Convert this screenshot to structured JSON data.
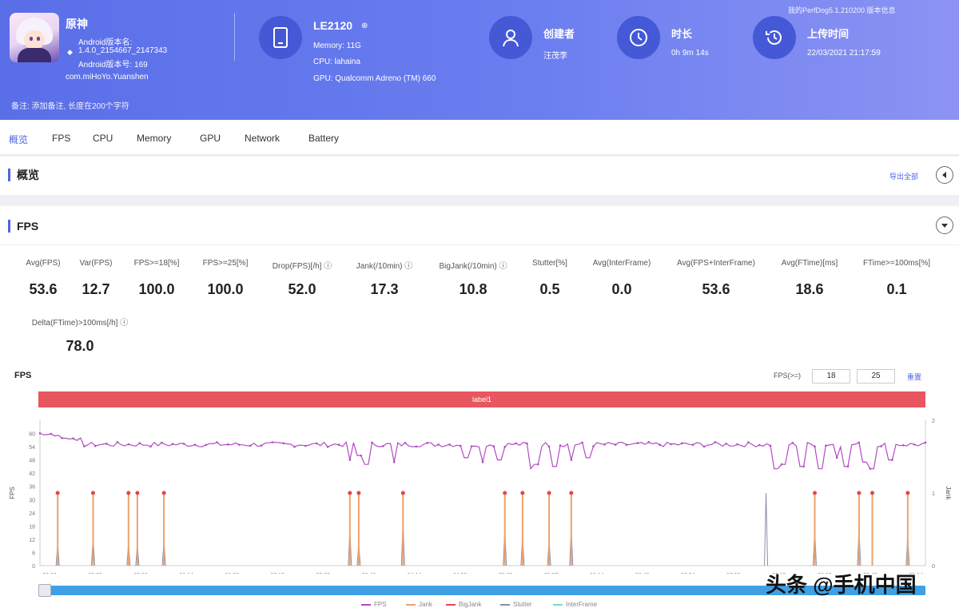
{
  "header": {
    "app_name": "原神",
    "android_version_name_label": "Android版本名:",
    "android_version_name": "1.4.0_2154667_2147343",
    "android_version_code": "Android版本号: 169",
    "package": "com.miHoYo.Yuanshen",
    "device": {
      "name": "LE2120",
      "memory": "Memory: 11G",
      "cpu": "CPU: lahaina",
      "gpu": "GPU: Qualcomm Adreno (TM) 660"
    },
    "creator": {
      "label": "创建者",
      "value": "汪茂李"
    },
    "duration": {
      "label": "时长",
      "value": "0h 9m 14s"
    },
    "upload": {
      "label": "上传时间",
      "value": "22/03/2021 21:17:59"
    },
    "top_note": "我的PerfDog5.1.210200 版本信息",
    "remark": "备注: 添加备注, 长度在200个字符"
  },
  "tabs": [
    "概览",
    "FPS",
    "CPU",
    "Memory",
    "GPU",
    "Network",
    "Battery"
  ],
  "overview": {
    "title": "概览",
    "export_label": "导出全部"
  },
  "fps_section": {
    "title": "FPS",
    "metrics": [
      {
        "label": "Avg(FPS)",
        "value": "53.6"
      },
      {
        "label": "Var(FPS)",
        "value": "12.7"
      },
      {
        "label": "FPS>=18[%]",
        "value": "100.0"
      },
      {
        "label": "FPS>=25[%]",
        "value": "100.0"
      },
      {
        "label": "Drop(FPS)[/h] ⓘ",
        "value": "52.0"
      },
      {
        "label": "Jank(/10min) ⓘ",
        "value": "17.3"
      },
      {
        "label": "BigJank(/10min) ⓘ",
        "value": "10.8"
      },
      {
        "label": "Stutter[%]",
        "value": "0.5"
      },
      {
        "label": "Avg(InterFrame)",
        "value": "0.0"
      },
      {
        "label": "Avg(FPS+InterFrame)",
        "value": "53.6"
      },
      {
        "label": "Avg(FTime)[ms]",
        "value": "18.6"
      },
      {
        "label": "FTime>=100ms[%]",
        "value": "0.1"
      },
      {
        "label": "Delta(FTime)>100ms[/h] ⓘ",
        "value": "78.0"
      }
    ]
  },
  "fps_chart_header": {
    "title": "FPS",
    "fps_thresh_label": "FPS(>=)",
    "thresh1": "18",
    "thresh2": "25",
    "reset": "重置",
    "label_bar": "label1"
  },
  "chart_data": {
    "type": "line",
    "title": "FPS",
    "ylabel": "FPS",
    "y2label": "Jank",
    "ylim": [
      0,
      66
    ],
    "y2lim": [
      0,
      2
    ],
    "y_ticks": [
      "60",
      "54",
      "48",
      "42",
      "36",
      "30",
      "24",
      "18",
      "12",
      "6",
      "0"
    ],
    "y2_ticks": [
      "2",
      "1",
      "0"
    ],
    "x_ticks": [
      "00:00",
      "00:38",
      "00:56",
      "01:14",
      "01:33",
      "02:13",
      "03:22",
      "03:46",
      "04:14",
      "04:32",
      "05:09",
      "05:37",
      "06:14",
      "06:46",
      "07:24",
      "07:56",
      "08:15",
      "08:32",
      "08:49",
      "09:14"
    ],
    "fps_series": {
      "name": "FPS",
      "color": "#b34bc4",
      "baseline": 55,
      "start_value": 60,
      "dips": [
        {
          "t": 0.35,
          "v": 48
        },
        {
          "t": 0.36,
          "v": 50
        },
        {
          "t": 0.37,
          "v": 46
        },
        {
          "t": 0.4,
          "v": 47
        },
        {
          "t": 0.48,
          "v": 49
        },
        {
          "t": 0.5,
          "v": 47
        },
        {
          "t": 0.52,
          "v": 48
        },
        {
          "t": 0.555,
          "v": 44
        },
        {
          "t": 0.56,
          "v": 46
        },
        {
          "t": 0.58,
          "v": 45
        },
        {
          "t": 0.6,
          "v": 48
        },
        {
          "t": 0.62,
          "v": 49
        },
        {
          "t": 0.83,
          "v": 44
        },
        {
          "t": 0.84,
          "v": 46
        },
        {
          "t": 0.86,
          "v": 45
        },
        {
          "t": 0.88,
          "v": 44
        },
        {
          "t": 0.9,
          "v": 49
        },
        {
          "t": 0.91,
          "v": 45
        },
        {
          "t": 0.93,
          "v": 47
        },
        {
          "t": 0.94,
          "v": 44
        },
        {
          "t": 0.96,
          "v": 48
        }
      ]
    },
    "jank_series": {
      "name": "Jank",
      "color": "#f0a06a",
      "value": 1,
      "t": [
        0.02,
        0.06,
        0.1,
        0.11,
        0.14,
        0.35,
        0.36,
        0.41,
        0.525,
        0.545,
        0.575,
        0.6,
        0.875,
        0.925,
        0.94,
        0.98
      ]
    },
    "bigjank_marker_color": "#e04848",
    "stutter_series": {
      "name": "Stutter",
      "color": "#8a8fa8",
      "values": [
        {
          "t": 0.02,
          "v": 0.3
        },
        {
          "t": 0.06,
          "v": 0.4
        },
        {
          "t": 0.1,
          "v": 0.3
        },
        {
          "t": 0.11,
          "v": 0.3
        },
        {
          "t": 0.14,
          "v": 0.35
        },
        {
          "t": 0.35,
          "v": 0.5
        },
        {
          "t": 0.36,
          "v": 0.3
        },
        {
          "t": 0.41,
          "v": 0.6
        },
        {
          "t": 0.525,
          "v": 0.5
        },
        {
          "t": 0.545,
          "v": 0.4
        },
        {
          "t": 0.575,
          "v": 0.35
        },
        {
          "t": 0.6,
          "v": 0.5
        },
        {
          "t": 0.82,
          "v": 1.0
        },
        {
          "t": 0.875,
          "v": 0.5
        },
        {
          "t": 0.925,
          "v": 0.5
        },
        {
          "t": 0.98,
          "v": 0.4
        }
      ]
    },
    "legend": [
      "FPS",
      "Jank",
      "BigJank",
      "Stutter",
      "InterFrame"
    ]
  },
  "colors": {
    "accent": "#4f63e6",
    "label_bar": "#e8565f",
    "scrollbar": "#3fa0e6"
  },
  "watermark": "头条 @手机中国"
}
